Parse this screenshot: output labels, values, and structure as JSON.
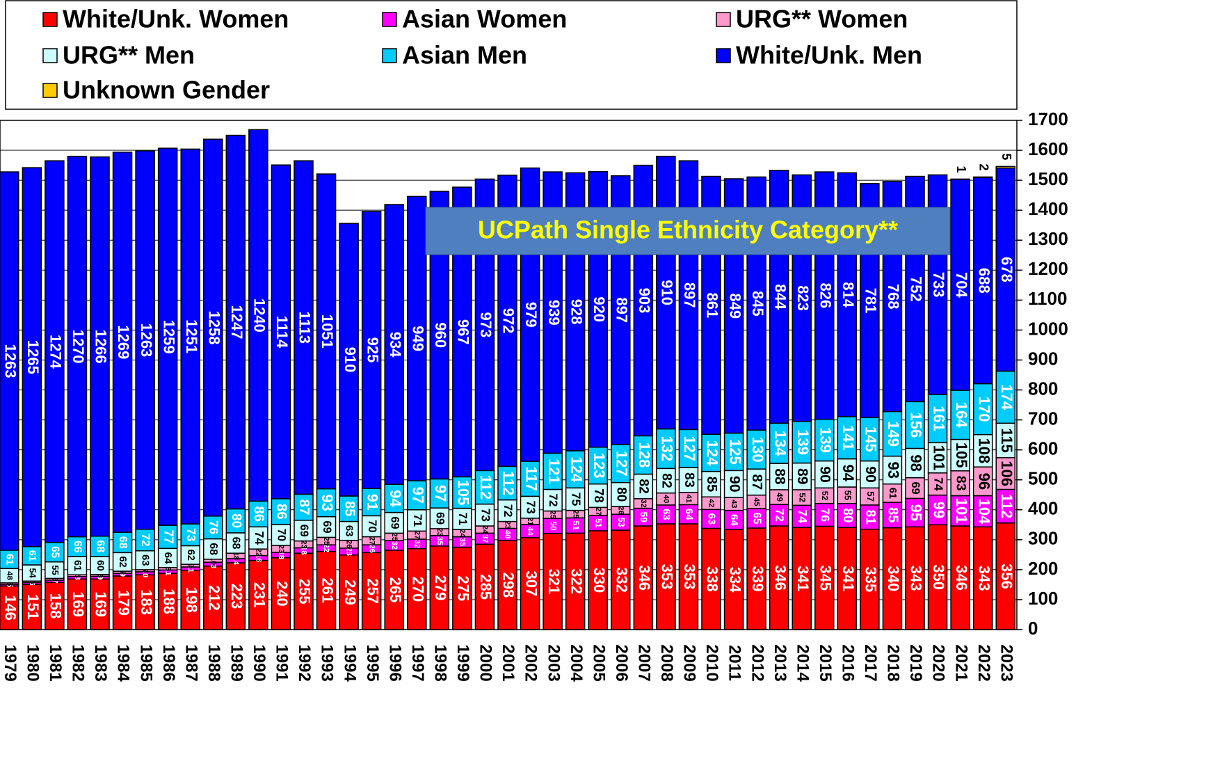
{
  "chart_data": {
    "type": "stacked_bar",
    "annotation": "UCPath Single Ethnicity Category**",
    "categories": [
      "1979",
      "1980",
      "1981",
      "1982",
      "1983",
      "1984",
      "1985",
      "1986",
      "1987",
      "1988",
      "1989",
      "1990",
      "1991",
      "1992",
      "1993",
      "1994",
      "1995",
      "1996",
      "1997",
      "1998",
      "1999",
      "2000",
      "2001",
      "2002",
      "2003",
      "2004",
      "2005",
      "2006",
      "2007",
      "2008",
      "2009",
      "2010",
      "2011",
      "2012",
      "2013",
      "2014",
      "2015",
      "2016",
      "2017",
      "2018",
      "2019",
      "2020",
      "2021",
      "2022",
      "2023"
    ],
    "series": [
      {
        "name": "White/Unk. Women",
        "color": "#ff0000",
        "values": [
          146,
          151,
          158,
          169,
          169,
          179,
          183,
          188,
          198,
          212,
          223,
          231,
          240,
          255,
          261,
          249,
          257,
          265,
          270,
          279,
          275,
          285,
          298,
          307,
          321,
          322,
          330,
          332,
          346,
          353,
          353,
          338,
          334,
          339,
          346,
          341,
          345,
          341,
          335,
          340,
          343,
          350,
          346,
          343,
          356
        ]
      },
      {
        "name": "Asian Women",
        "color": "#ff00ff",
        "values": [
          5,
          6,
          7,
          8,
          9,
          9,
          10,
          11,
          11,
          13,
          14,
          16,
          18,
          18,
          22,
          23,
          26,
          32,
          32,
          35,
          35,
          37,
          40,
          44,
          50,
          51,
          51,
          53,
          59,
          63,
          64,
          63,
          64,
          65,
          72,
          74,
          76,
          80,
          81,
          85,
          95,
          99,
          101,
          104,
          112
        ]
      },
      {
        "name": "URG** Women",
        "color": "#ff99cc",
        "values": [
          5,
          5,
          6,
          6,
          6,
          7,
          7,
          8,
          9,
          10,
          18,
          22,
          23,
          23,
          25,
          26,
          27,
          25,
          27,
          23,
          24,
          24,
          23,
          21,
          25,
          25,
          27,
          26,
          32,
          40,
          41,
          42,
          43,
          45,
          49,
          52,
          52,
          55,
          57,
          61,
          69,
          74,
          83,
          96,
          106
        ]
      },
      {
        "name": "URG** Men",
        "color": "#ccffff",
        "values": [
          48,
          54,
          55,
          61,
          60,
          62,
          63,
          64,
          62,
          68,
          68,
          74,
          70,
          69,
          69,
          63,
          70,
          69,
          71,
          69,
          71,
          73,
          72,
          73,
          72,
          75,
          78,
          80,
          82,
          82,
          83,
          85,
          90,
          87,
          88,
          89,
          90,
          94,
          90,
          93,
          98,
          101,
          105,
          108,
          115
        ]
      },
      {
        "name": "Asian Men",
        "color": "#00ccff",
        "values": [
          61,
          61,
          65,
          66,
          68,
          68,
          72,
          77,
          73,
          76,
          80,
          86,
          86,
          87,
          93,
          85,
          91,
          94,
          97,
          97,
          105,
          112,
          112,
          117,
          121,
          124,
          123,
          127,
          128,
          132,
          127,
          124,
          125,
          130,
          134,
          139,
          139,
          141,
          145,
          149,
          156,
          161,
          164,
          170,
          174
        ]
      },
      {
        "name": "White/Unk. Men",
        "color": "#0000ff",
        "values": [
          1263,
          1265,
          1274,
          1270,
          1266,
          1269,
          1263,
          1259,
          1251,
          1258,
          1247,
          1240,
          1114,
          1113,
          1051,
          910,
          925,
          934,
          949,
          960,
          967,
          973,
          972,
          979,
          939,
          928,
          920,
          897,
          903,
          910,
          897,
          861,
          849,
          845,
          844,
          823,
          826,
          814,
          781,
          768,
          752,
          733,
          704,
          688,
          678
        ]
      },
      {
        "name": "Unknown Gender",
        "color": "#ffcc00",
        "values": [
          null,
          null,
          null,
          null,
          null,
          null,
          null,
          null,
          null,
          null,
          null,
          null,
          null,
          null,
          null,
          null,
          null,
          null,
          null,
          null,
          null,
          null,
          null,
          null,
          null,
          null,
          null,
          null,
          null,
          null,
          null,
          null,
          null,
          null,
          null,
          null,
          null,
          null,
          null,
          null,
          null,
          null,
          1,
          2,
          5
        ]
      }
    ],
    "ylim": [
      0,
      1700
    ],
    "yticks": [
      0,
      100,
      200,
      300,
      400,
      500,
      600,
      700,
      800,
      900,
      1000,
      1100,
      1200,
      1300,
      1400,
      1500,
      1600,
      1700
    ],
    "legend": "top"
  }
}
